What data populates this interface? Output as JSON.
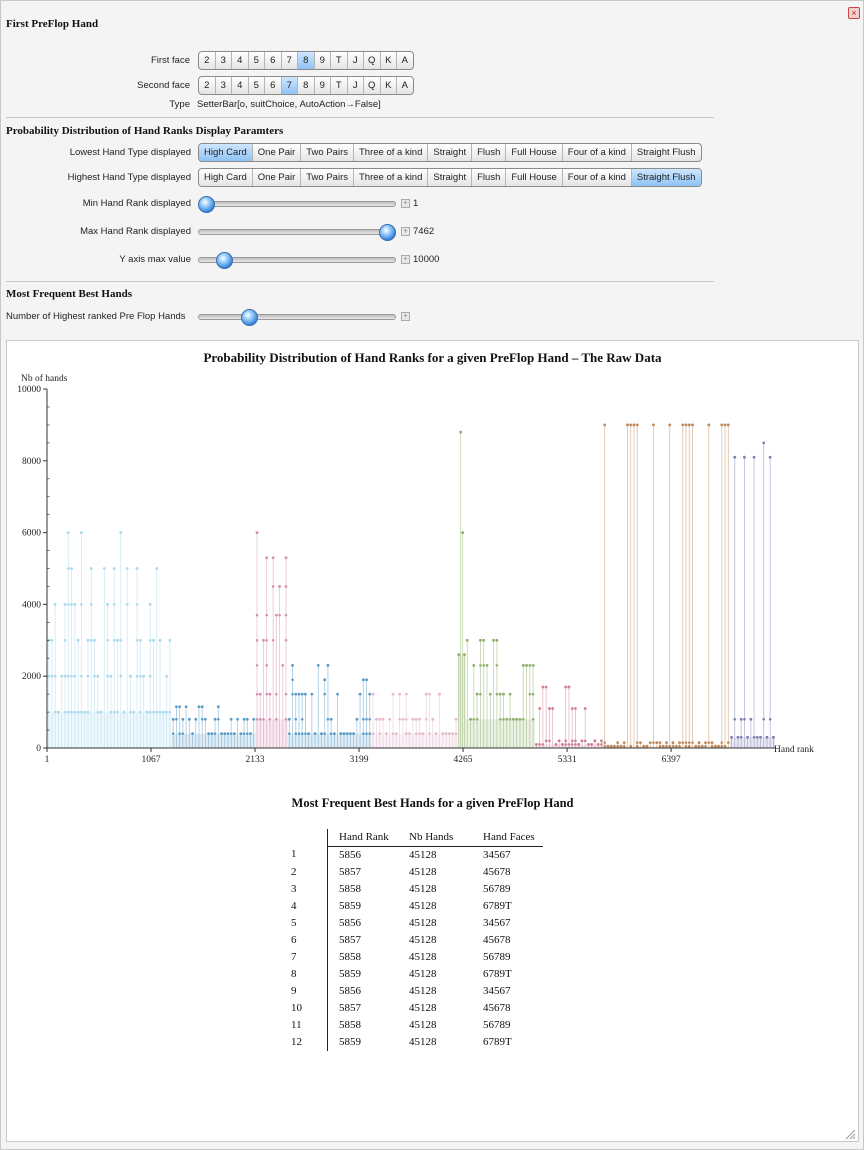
{
  "first_preflop": {
    "title": "First PreFlop Hand",
    "first_face_label": "First face",
    "second_face_label": "Second face",
    "cards": [
      "2",
      "3",
      "4",
      "5",
      "6",
      "7",
      "8",
      "9",
      "T",
      "J",
      "Q",
      "K",
      "A"
    ],
    "first_face_selected": "8",
    "second_face_selected": "7",
    "type_label": "Type",
    "type_value": "SetterBar[o, suitChoice, AutoAction→False]"
  },
  "display_params": {
    "title": "Probability Distribution of Hand Ranks Display Paramters",
    "lowest_label": "Lowest Hand Type displayed",
    "highest_label": "Highest Hand Type displayed",
    "hand_types": [
      "High Card",
      "One Pair",
      "Two Pairs",
      "Three of a kind",
      "Straight",
      "Flush",
      "Full House",
      "Four of a kind",
      "Straight Flush"
    ],
    "lowest_selected": "High Card",
    "highest_selected": "Straight Flush",
    "min_rank_label": "Min Hand Rank displayed",
    "min_rank_value": "1",
    "max_rank_label": "Max Hand Rank displayed",
    "max_rank_value": "7462",
    "ymax_label": "Y axis max value",
    "ymax_value": "10000",
    "min_rank_level": 0.0,
    "max_rank_level": 1.0,
    "ymax_level": 0.1
  },
  "most_frequent": {
    "title": "Most Frequent Best Hands",
    "count_label": "Number of Highest ranked Pre Flop Hands",
    "count_level": 0.24
  },
  "chart_data": {
    "type": "scatter",
    "title": "Probability Distribution of Hand Ranks for a given PreFlop Hand – The Raw Data",
    "xlabel": "Hand rank",
    "ylabel": "Nb of hands",
    "xlim": [
      1,
      7462
    ],
    "ylim": [
      0,
      10000
    ],
    "x_ticks": [
      "1",
      "1067",
      "2133",
      "3199",
      "4265",
      "5331",
      "6397"
    ],
    "y_ticks": [
      "0",
      "2000",
      "4000",
      "6000",
      "8000",
      "10000"
    ],
    "grid": false,
    "series": [
      {
        "color": "#a9d8ee",
        "x_range": [
          1,
          1277
        ],
        "levels": [
          1000,
          2000,
          3000,
          4000,
          5000,
          6000
        ]
      },
      {
        "color": "#5b9cc8",
        "x_range": [
          1278,
          2136
        ],
        "levels": [
          400,
          800,
          1150
        ]
      },
      {
        "color": "#d58fb0",
        "x_range": [
          2137,
          2467
        ],
        "levels": [
          800,
          1500,
          2300,
          3000,
          3700,
          4500,
          5300,
          6000
        ]
      },
      {
        "color": "#5b9cc8",
        "x_range": [
          2468,
          3325
        ],
        "levels": [
          400,
          800,
          1500,
          1900,
          2300
        ]
      },
      {
        "color": "#e6b8cc",
        "x_range": [
          3326,
          4210
        ],
        "levels": [
          400,
          800,
          1500
        ]
      },
      {
        "color": "#8fb06a",
        "x_range": [
          4211,
          4290
        ],
        "levels": [
          2600,
          3700,
          6000,
          8800
        ]
      },
      {
        "color": "#8fb06a",
        "x_range": [
          4291,
          5000
        ],
        "levels": [
          800,
          1500,
          2300,
          3000
        ]
      },
      {
        "color": "#d07f96",
        "x_range": [
          5000,
          5700
        ],
        "levels": [
          100,
          200,
          1100,
          1700
        ]
      },
      {
        "color": "#c08a5a",
        "x_range": [
          5700,
          7000
        ],
        "levels": [
          50,
          150,
          9000
        ]
      },
      {
        "color": "#7d7fb5",
        "x_range": [
          7000,
          7462
        ],
        "levels": [
          300,
          800,
          8100,
          8500
        ]
      }
    ]
  },
  "table": {
    "title": "Most Frequent Best Hands for a given PreFlop Hand",
    "headers": [
      "Hand Rank",
      "Nb Hands",
      "Hand Faces"
    ],
    "rows": [
      [
        "1",
        "5856",
        "45128",
        "34567"
      ],
      [
        "2",
        "5857",
        "45128",
        "45678"
      ],
      [
        "3",
        "5858",
        "45128",
        "56789"
      ],
      [
        "4",
        "5859",
        "45128",
        "6789T"
      ],
      [
        "5",
        "5856",
        "45128",
        "34567"
      ],
      [
        "6",
        "5857",
        "45128",
        "45678"
      ],
      [
        "7",
        "5858",
        "45128",
        "56789"
      ],
      [
        "8",
        "5859",
        "45128",
        "6789T"
      ],
      [
        "9",
        "5856",
        "45128",
        "34567"
      ],
      [
        "10",
        "5857",
        "45128",
        "45678"
      ],
      [
        "11",
        "5858",
        "45128",
        "56789"
      ],
      [
        "12",
        "5859",
        "45128",
        "6789T"
      ]
    ]
  }
}
